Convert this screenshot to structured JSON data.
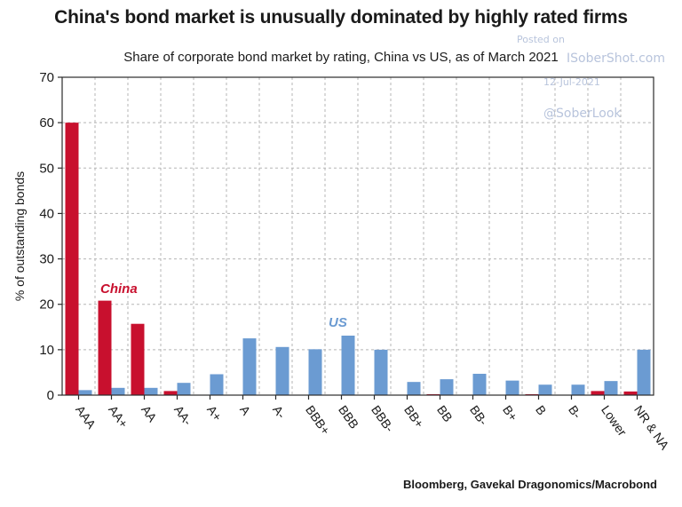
{
  "chart_data": {
    "type": "bar",
    "title": "China's bond market is unusually dominated by highly rated firms",
    "subtitle": "Share of corporate bond market by rating, China vs US, as of March 2021",
    "ylabel": "% of outstanding bonds",
    "xlabel": "",
    "ylim": [
      0,
      70
    ],
    "yticks": [
      0,
      10,
      20,
      30,
      40,
      50,
      60,
      70
    ],
    "grid": true,
    "categories": [
      "AAA",
      "AA+",
      "AA",
      "AA-",
      "A+",
      "A",
      "A-",
      "BBB+",
      "BBB",
      "BBB-",
      "BB+",
      "BB",
      "BB-",
      "B+",
      "B",
      "B-",
      "Lower",
      "NR & NA"
    ],
    "series": [
      {
        "name": "China",
        "color": "#c8102e",
        "values": [
          60,
          20.8,
          15.7,
          0.9,
          0,
          0,
          0,
          0,
          0,
          0,
          0,
          0.2,
          0,
          0,
          0.2,
          0,
          0.9,
          0.8
        ]
      },
      {
        "name": "US",
        "color": "#6b9bd2",
        "values": [
          1.1,
          1.6,
          1.6,
          2.7,
          4.6,
          12.5,
          10.6,
          10.1,
          13.1,
          10.0,
          2.9,
          3.5,
          4.7,
          3.2,
          2.3,
          2.3,
          3.1,
          10.0
        ]
      }
    ],
    "annotations": [
      {
        "text": "China",
        "series": "China"
      },
      {
        "text": "US",
        "series": "US"
      }
    ]
  },
  "watermark": {
    "line1": "Posted on",
    "line2": "ISoberShot.com",
    "line3": "12-Jul-2021",
    "line4": "@SoberLook"
  },
  "source": "Bloomberg, Gavekal Dragonomics/Macrobond"
}
